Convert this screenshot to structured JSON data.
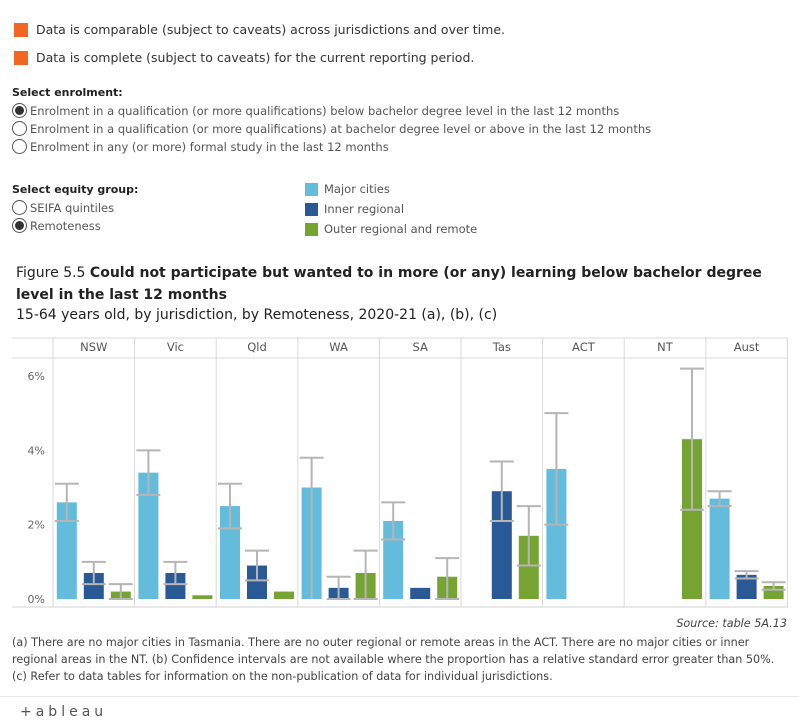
{
  "legend_top": [
    {
      "label": "Data is comparable (subject to caveats) across jurisdictions and over time.",
      "color": "#f26522"
    },
    {
      "label": "Data is complete (subject to caveats) for the current reporting period.",
      "color": "#f26522"
    }
  ],
  "enrolment": {
    "heading": "Select enrolment:",
    "options": [
      {
        "label": "Enrolment in a qualification (or more qualifications) below bachelor degree level in the last 12 months",
        "selected": true
      },
      {
        "label": "Enrolment in a qualification (or more qualifications) at bachelor degree level or above in the last 12 months",
        "selected": false
      },
      {
        "label": "Enrolment in any (or more) formal study in the last 12 months",
        "selected": false
      }
    ]
  },
  "equity": {
    "heading": "Select equity group:",
    "options": [
      {
        "label": "SEIFA quintiles",
        "selected": false
      },
      {
        "label": "Remoteness",
        "selected": true
      }
    ]
  },
  "series_legend": [
    {
      "label": "Major cities",
      "color": "#64bcdc"
    },
    {
      "label": "Inner regional",
      "color": "#2a5a96"
    },
    {
      "label": "Outer regional and remote",
      "color": "#76a433"
    }
  ],
  "figure": {
    "prefix": "Figure 5.5 ",
    "title": "Could not participate but wanted to in more (or any) learning below bachelor degree level in the last 12 months",
    "subtitle": "15-64 years old, by jurisdiction, by Remoteness, 2020-21 (a), (b), (c)"
  },
  "chart_data": {
    "type": "bar",
    "categories": [
      "NSW",
      "Vic",
      "Qld",
      "WA",
      "SA",
      "Tas",
      "ACT",
      "NT",
      "Aust"
    ],
    "ylim": [
      0,
      6.5
    ],
    "yticks": [
      0,
      2,
      4,
      6
    ],
    "ytick_labels": [
      "0%",
      "2%",
      "4%",
      "6%"
    ],
    "grid": false,
    "series": [
      {
        "name": "Major cities",
        "color": "#64bcdc",
        "values": [
          2.6,
          3.4,
          2.5,
          3.0,
          2.1,
          null,
          3.5,
          null,
          2.7
        ],
        "ci_low": [
          2.1,
          2.8,
          1.9,
          null,
          1.6,
          null,
          2.0,
          null,
          2.5
        ],
        "ci_high": [
          3.1,
          4.0,
          3.1,
          3.8,
          2.6,
          null,
          5.0,
          null,
          2.9
        ]
      },
      {
        "name": "Inner regional",
        "color": "#2a5a96",
        "values": [
          0.7,
          0.7,
          0.9,
          0.3,
          0.3,
          2.9,
          null,
          null,
          0.65
        ],
        "ci_low": [
          0.4,
          0.4,
          0.5,
          0.0,
          null,
          2.1,
          null,
          null,
          0.55
        ],
        "ci_high": [
          1.0,
          1.0,
          1.3,
          0.6,
          null,
          3.7,
          null,
          null,
          0.75
        ]
      },
      {
        "name": "Outer regional and remote",
        "color": "#76a433",
        "values": [
          0.2,
          0.1,
          0.2,
          0.7,
          0.6,
          1.7,
          null,
          4.3,
          0.35
        ],
        "ci_low": [
          0.0,
          null,
          null,
          0.0,
          0.0,
          0.9,
          null,
          2.4,
          0.25
        ],
        "ci_high": [
          0.4,
          null,
          null,
          1.3,
          1.1,
          2.5,
          null,
          6.2,
          0.45
        ]
      }
    ]
  },
  "source": "Source: table 5A.13",
  "footnotes": "(a) There are no major cities in Tasmania. There are no outer regional or remote areas in the ACT. There are no major cities or inner regional areas in the NT. (b) Confidence intervals are not available where the proportion has a relative standard error greater than 50%. (c) Refer to data tables for information on the non-publication of data for individual jurisdictions.",
  "brand": "+ableau"
}
